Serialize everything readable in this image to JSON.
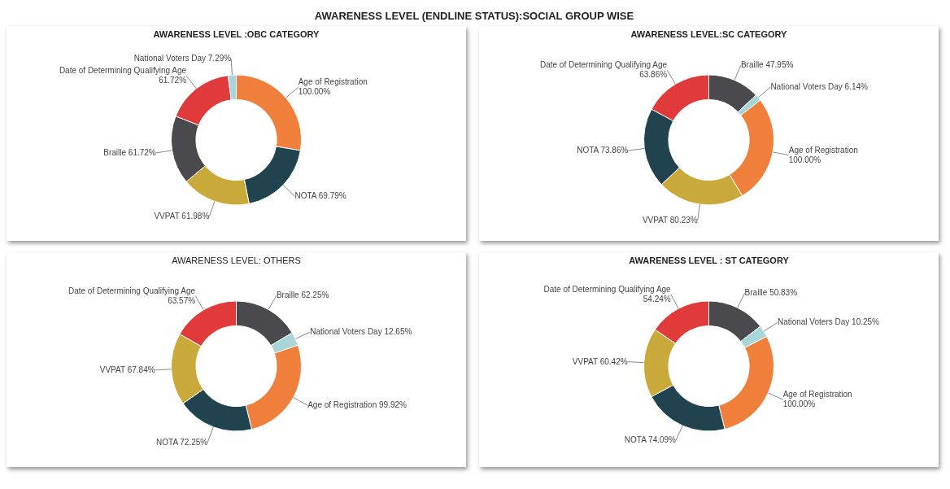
{
  "chart_data": [
    {
      "type": "other",
      "title": "AWARENESS LEVEL (ENDLINE STATUS):SOCIAL GROUP WISE"
    },
    {
      "type": "donut",
      "title": "AWARENESS LEVEL :OBC CATEGORY",
      "categories": [
        "Age of Registration",
        "NOTA",
        "VVPAT",
        "Braille",
        "Date of Determining Qualifying Age",
        "National Voters Day"
      ],
      "values": [
        100,
        69.79,
        61.98,
        61.72,
        61.72,
        7.29
      ],
      "value_labels": [
        "100.00%",
        "69.79%",
        "61.98%",
        "61.72%",
        "61.72%",
        "7.29%"
      ],
      "colors": [
        "#f07f3c",
        "#21434f",
        "#c9a93a",
        "#4a4a4e",
        "#e03a3a",
        "#a8d5d8"
      ]
    },
    {
      "type": "donut",
      "title": "AWARENESS LEVEL:SC CATEGORY",
      "categories": [
        "Braille",
        "National Voters Day",
        "Age of Registration",
        "VVPAT",
        "NOTA",
        "Date of Determining Qualifying Age"
      ],
      "values": [
        47.95,
        6.14,
        100,
        80.23,
        73.86,
        63.86
      ],
      "value_labels": [
        "47.95%",
        "6.14%",
        "100.00%",
        "80.23%",
        "73.86%",
        "63.86%"
      ],
      "colors": [
        "#4a4a4e",
        "#a8d5d8",
        "#f07f3c",
        "#c9a93a",
        "#21434f",
        "#e03a3a"
      ]
    },
    {
      "type": "donut",
      "title": "AWARENESS LEVEL: OTHERS",
      "categories": [
        "Braille",
        "National Voters Day",
        "Age of Registration",
        "NOTA",
        "VVPAT",
        "Date of Determining Qualifying Age"
      ],
      "values": [
        62.25,
        12.65,
        99.92,
        72.25,
        67.84,
        63.57
      ],
      "value_labels": [
        "62.25%",
        "12.65%",
        "99.92%",
        "72.25%",
        "67.84%",
        "63.57%"
      ],
      "colors": [
        "#4a4a4e",
        "#a8d5d8",
        "#f07f3c",
        "#21434f",
        "#c9a93a",
        "#e03a3a"
      ]
    },
    {
      "type": "donut",
      "title": "AWARENESS LEVEL : ST CATEGORY",
      "categories": [
        "Braille",
        "National Voters Day",
        "Age of Registration",
        "NOTA",
        "VVPAT",
        "Date of Determining Qualifying Age"
      ],
      "values": [
        50.83,
        10.25,
        100,
        74.09,
        60.42,
        54.24
      ],
      "value_labels": [
        "50.83%",
        "10.25%",
        "100.00%",
        "74.09%",
        "60.42%",
        "54.24%"
      ],
      "colors": [
        "#4a4a4e",
        "#a8d5d8",
        "#f07f3c",
        "#21434f",
        "#c9a93a",
        "#e03a3a"
      ]
    }
  ]
}
